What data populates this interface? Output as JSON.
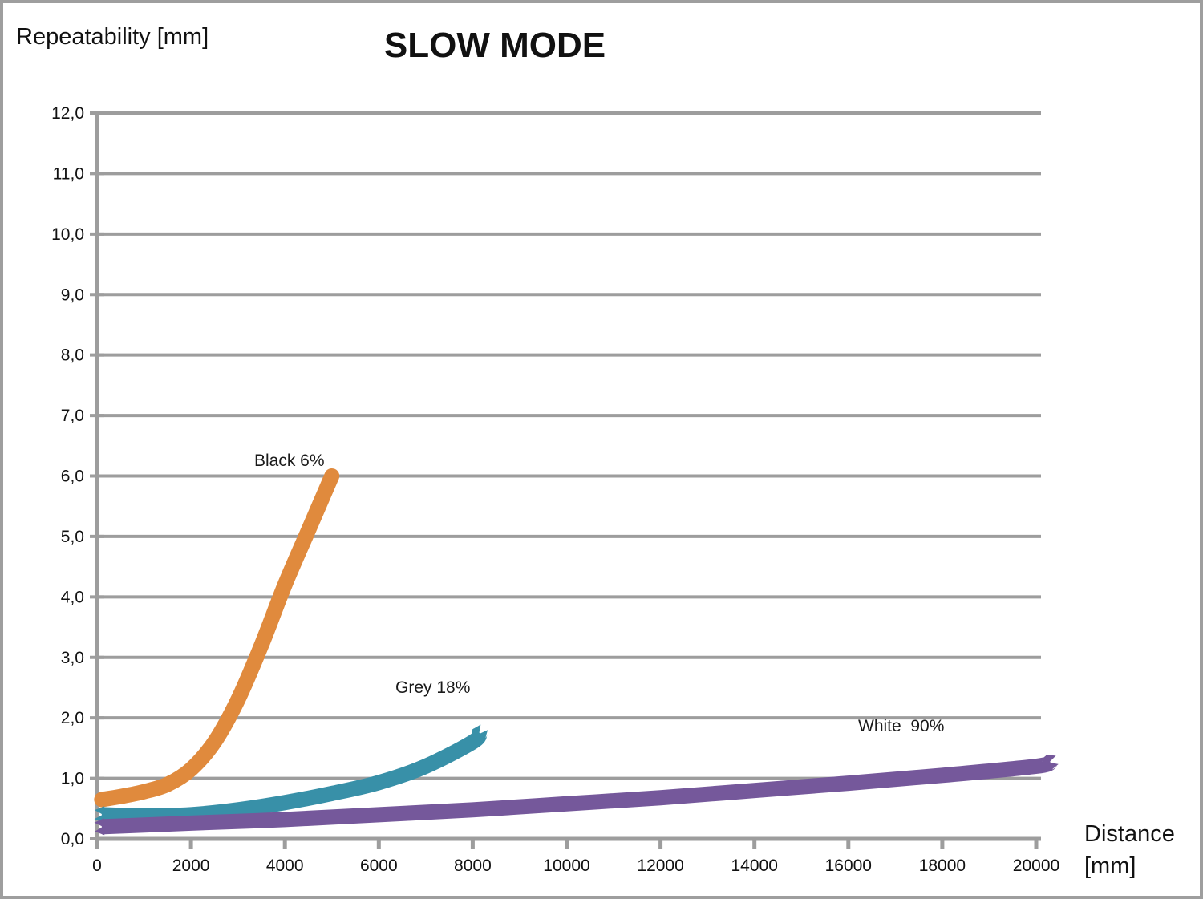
{
  "header": {
    "title": "SLOW MODE",
    "y_axis_label": "Repeatability [mm]"
  },
  "x_axis_label": {
    "line1": "Distance",
    "line2": "[mm]"
  },
  "colors": {
    "grid": "#9d9d9d",
    "axis": "#9d9d9d",
    "text": "#111111",
    "series_black6": "#e08a3d",
    "series_grey18": "#3890a8",
    "series_white90": "#75589b"
  },
  "chart_data": {
    "type": "line",
    "title": "SLOW MODE",
    "xlabel": "Distance [mm]",
    "ylabel": "Repeatability [mm]",
    "xlim": [
      0,
      20000
    ],
    "ylim": [
      0,
      12
    ],
    "grid": "horizontal",
    "legend_position": "inline-labels",
    "x_ticks": [
      0,
      2000,
      4000,
      6000,
      8000,
      10000,
      12000,
      14000,
      16000,
      18000,
      20000
    ],
    "x_tick_labels": [
      "0",
      "2000",
      "4000",
      "6000",
      "8000",
      "10000",
      "12000",
      "14000",
      "16000",
      "18000",
      "20000"
    ],
    "y_ticks": [
      0,
      1,
      2,
      3,
      4,
      5,
      6,
      7,
      8,
      9,
      10,
      11,
      12
    ],
    "y_tick_labels": [
      "0,0",
      "1,0",
      "2,0",
      "3,0",
      "4,0",
      "5,0",
      "6,0",
      "7,0",
      "8,0",
      "9,0",
      "10,0",
      "11,0",
      "12,0"
    ],
    "series": [
      {
        "name": "Black 6%",
        "color": "#e08a3d",
        "end_style": "round",
        "x": [
          100,
          500,
          1000,
          1500,
          2000,
          2500,
          3000,
          3500,
          4000,
          4500,
          5000
        ],
        "y": [
          0.65,
          0.7,
          0.78,
          0.9,
          1.15,
          1.6,
          2.3,
          3.2,
          4.2,
          5.1,
          6.0
        ]
      },
      {
        "name": "Grey 18%",
        "color": "#3890a8",
        "end_style": "jagged",
        "x": [
          100,
          1000,
          2000,
          3000,
          4000,
          5000,
          6000,
          7000,
          8000,
          8150
        ],
        "y": [
          0.4,
          0.38,
          0.4,
          0.48,
          0.6,
          0.75,
          0.93,
          1.2,
          1.6,
          1.75
        ]
      },
      {
        "name": "White  90%",
        "color": "#75589b",
        "end_style": "jagged",
        "x": [
          100,
          2000,
          4000,
          6000,
          8000,
          10000,
          12000,
          14000,
          16000,
          18000,
          20000,
          20300
        ],
        "y": [
          0.2,
          0.26,
          0.32,
          0.4,
          0.48,
          0.58,
          0.68,
          0.8,
          0.92,
          1.05,
          1.2,
          1.27
        ]
      }
    ]
  }
}
